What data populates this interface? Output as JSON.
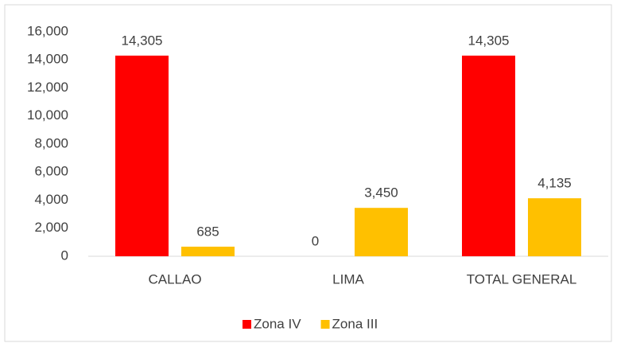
{
  "chart_data": {
    "type": "bar",
    "categories": [
      "CALLAO",
      "LIMA",
      "TOTAL GENERAL"
    ],
    "series": [
      {
        "name": "Zona IV",
        "color": "#ff0000",
        "values": [
          14305,
          0,
          14305
        ],
        "value_labels": [
          "14,305",
          "0",
          "14,305"
        ]
      },
      {
        "name": "Zona III",
        "color": "#ffc000",
        "values": [
          685,
          3450,
          4135
        ],
        "value_labels": [
          "685",
          "3,450",
          "4,135"
        ]
      }
    ],
    "ylim": [
      0,
      16000
    ],
    "yticks": [
      0,
      {
        "value": 2000,
        "label": "2,000"
      },
      {
        "value": 4000,
        "label": "4,000"
      },
      {
        "value": 6000,
        "label": "6,000"
      },
      {
        "value": 8000,
        "label": "8,000"
      },
      {
        "value": 10000,
        "label": "10,000"
      },
      {
        "value": 12000,
        "label": "12,000"
      },
      {
        "value": 14000,
        "label": "14,000"
      },
      {
        "value": 16000,
        "label": "16,000"
      }
    ],
    "grid": false,
    "legend": "bottom"
  }
}
